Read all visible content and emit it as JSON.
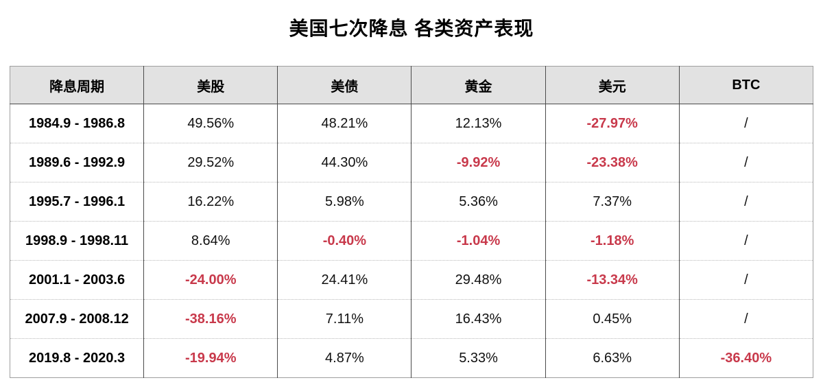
{
  "title": "美国七次降息 各类资产表现",
  "colors": {
    "negative_value": "#c8394b",
    "header_background": "#e2e2e2",
    "column_separator": "#4a4a4a"
  },
  "table": {
    "headers": [
      "降息周期",
      "美股",
      "美债",
      "黄金",
      "美元",
      "BTC"
    ],
    "rows": [
      {
        "period": "1984.9 - 1986.8",
        "values": [
          "49.56%",
          "48.21%",
          "12.13%",
          "-27.97%",
          "/"
        ]
      },
      {
        "period": "1989.6 - 1992.9",
        "values": [
          "29.52%",
          "44.30%",
          "-9.92%",
          "-23.38%",
          "/"
        ]
      },
      {
        "period": "1995.7 - 1996.1",
        "values": [
          "16.22%",
          "5.98%",
          "5.36%",
          "7.37%",
          "/"
        ]
      },
      {
        "period": "1998.9 - 1998.11",
        "values": [
          "8.64%",
          "-0.40%",
          "-1.04%",
          "-1.18%",
          "/"
        ]
      },
      {
        "period": "2001.1 - 2003.6",
        "values": [
          "-24.00%",
          "24.41%",
          "29.48%",
          "-13.34%",
          "/"
        ]
      },
      {
        "period": "2007.9 - 2008.12",
        "values": [
          "-38.16%",
          "7.11%",
          "16.43%",
          "0.45%",
          "/"
        ]
      },
      {
        "period": "2019.8 - 2020.3",
        "values": [
          "-19.94%",
          "4.87%",
          "5.33%",
          "6.63%",
          "-36.40%"
        ]
      }
    ]
  }
}
